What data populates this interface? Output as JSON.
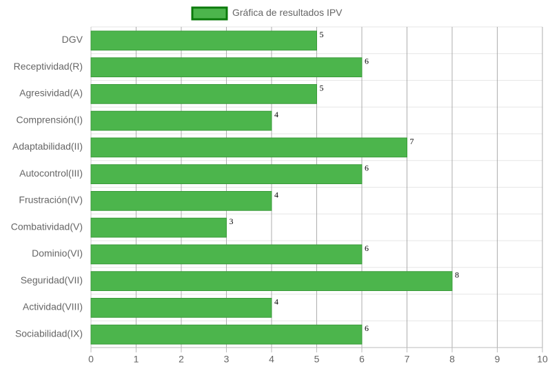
{
  "chart_data": {
    "type": "bar",
    "orientation": "horizontal",
    "legend": "Gráfica de resultados IPV",
    "legend_position": "top",
    "categories": [
      "DGV",
      "Receptividad(R)",
      "Agresividad(A)",
      "Comprensión(I)",
      "Adaptabilidad(II)",
      "Autocontrol(III)",
      "Frustración(IV)",
      "Combatividad(V)",
      "Dominio(VI)",
      "Seguridad(VII)",
      "Actividad(VIII)",
      "Sociabilidad(IX)"
    ],
    "values": [
      5,
      6,
      5,
      4,
      7,
      6,
      4,
      3,
      6,
      8,
      4,
      6
    ],
    "color": "#4cb54c",
    "border_color": "#3a9a3a",
    "xlim": [
      0,
      10
    ],
    "xticks": [
      0,
      1,
      2,
      3,
      4,
      5,
      6,
      7,
      8,
      9,
      10
    ],
    "grid": true
  }
}
